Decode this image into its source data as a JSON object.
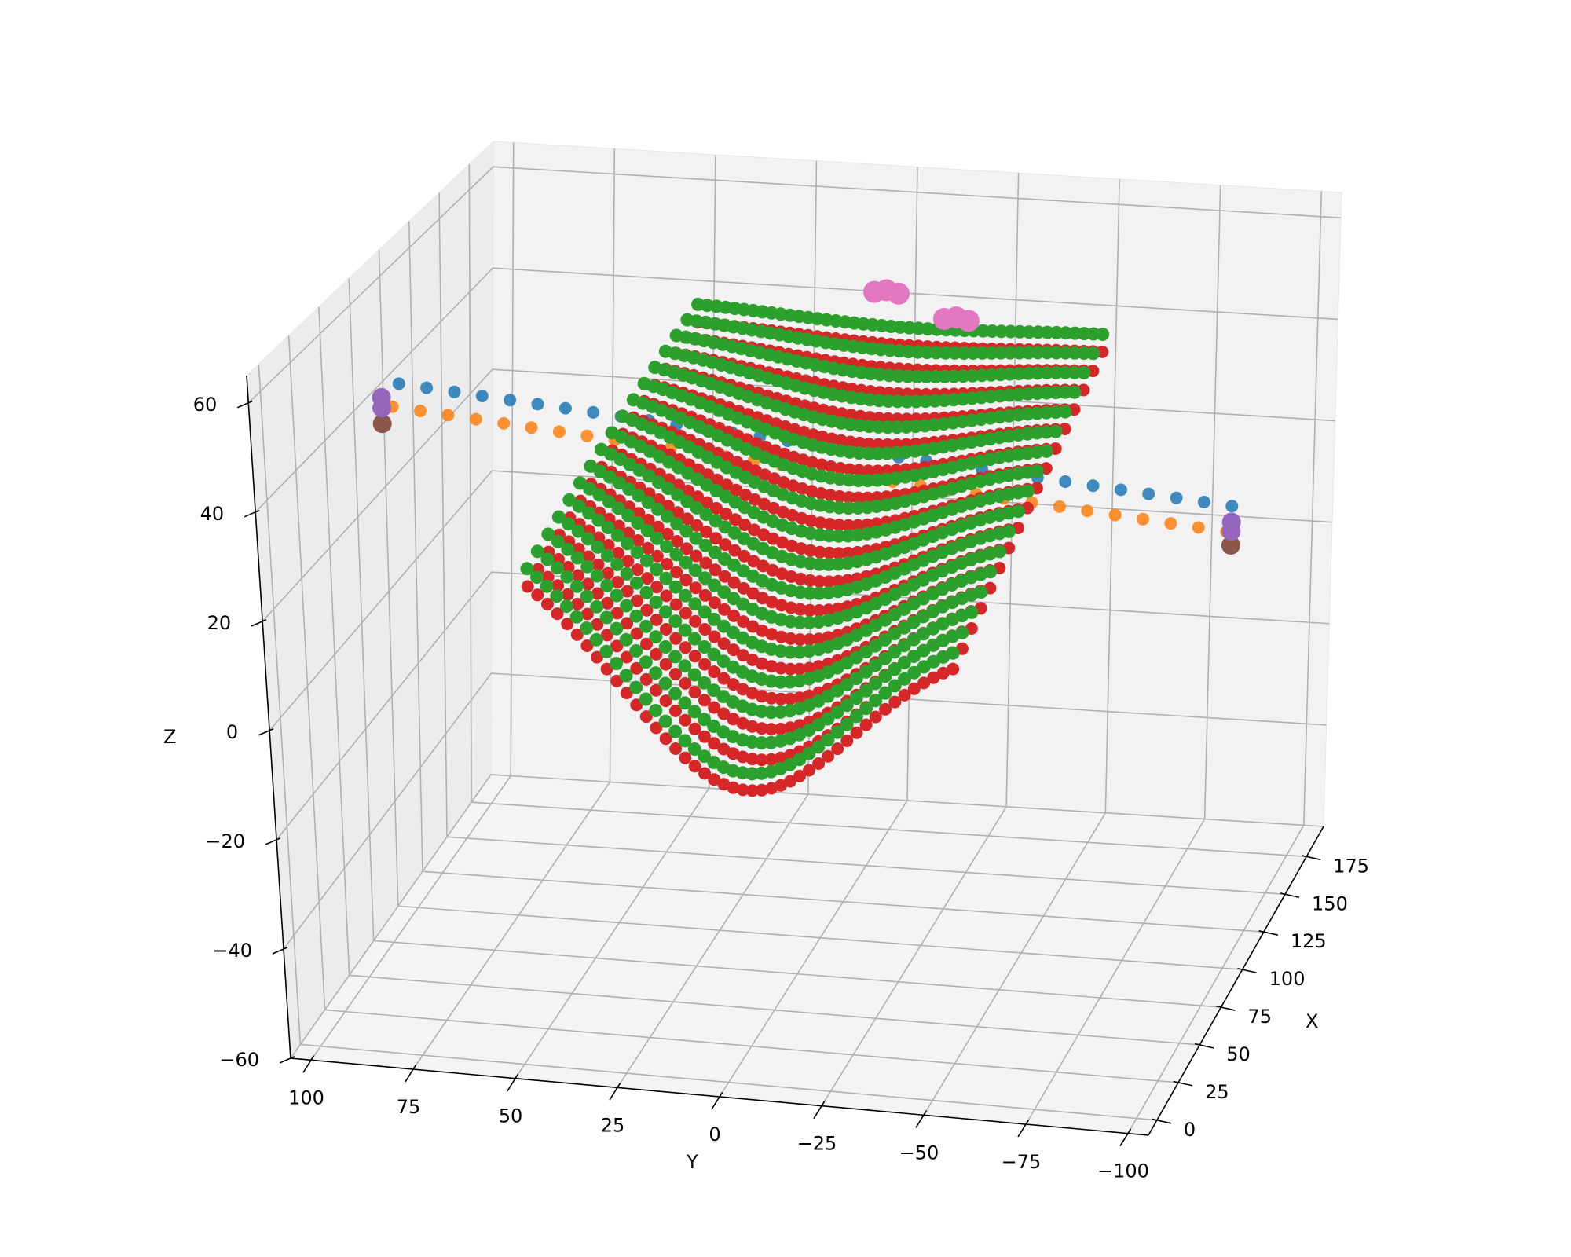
{
  "chart_data": {
    "type": "scatter",
    "projection": "3d",
    "title": "",
    "xlabel": "X",
    "ylabel": "Y",
    "zlabel": "Z",
    "xlim": [
      -10,
      195
    ],
    "ylim": [
      -105,
      105
    ],
    "zlim": [
      -60,
      65
    ],
    "xticks": [
      0,
      25,
      50,
      75,
      100,
      125,
      150,
      175
    ],
    "xtick_labels": [
      "0",
      "25",
      "50",
      "75",
      "100",
      "125",
      "150",
      "175"
    ],
    "yticks": [
      100,
      75,
      50,
      25,
      0,
      -25,
      -50,
      -75,
      -100
    ],
    "ytick_labels": [
      "100",
      "75",
      "50",
      "25",
      "0",
      "−25",
      "−50",
      "−75",
      "−100"
    ],
    "zticks": [
      60,
      40,
      20,
      0,
      -20,
      -40,
      -60
    ],
    "ztick_labels": [
      "60",
      "40",
      "20",
      "0",
      "−20",
      "−40",
      "−60"
    ],
    "grid": true,
    "legend": "none",
    "series_colors": [
      "#1f77b4",
      "#ff7f0e",
      "#2ca02c",
      "#d62728",
      "#9467bd",
      "#8c564b",
      "#e377c2"
    ]
  }
}
